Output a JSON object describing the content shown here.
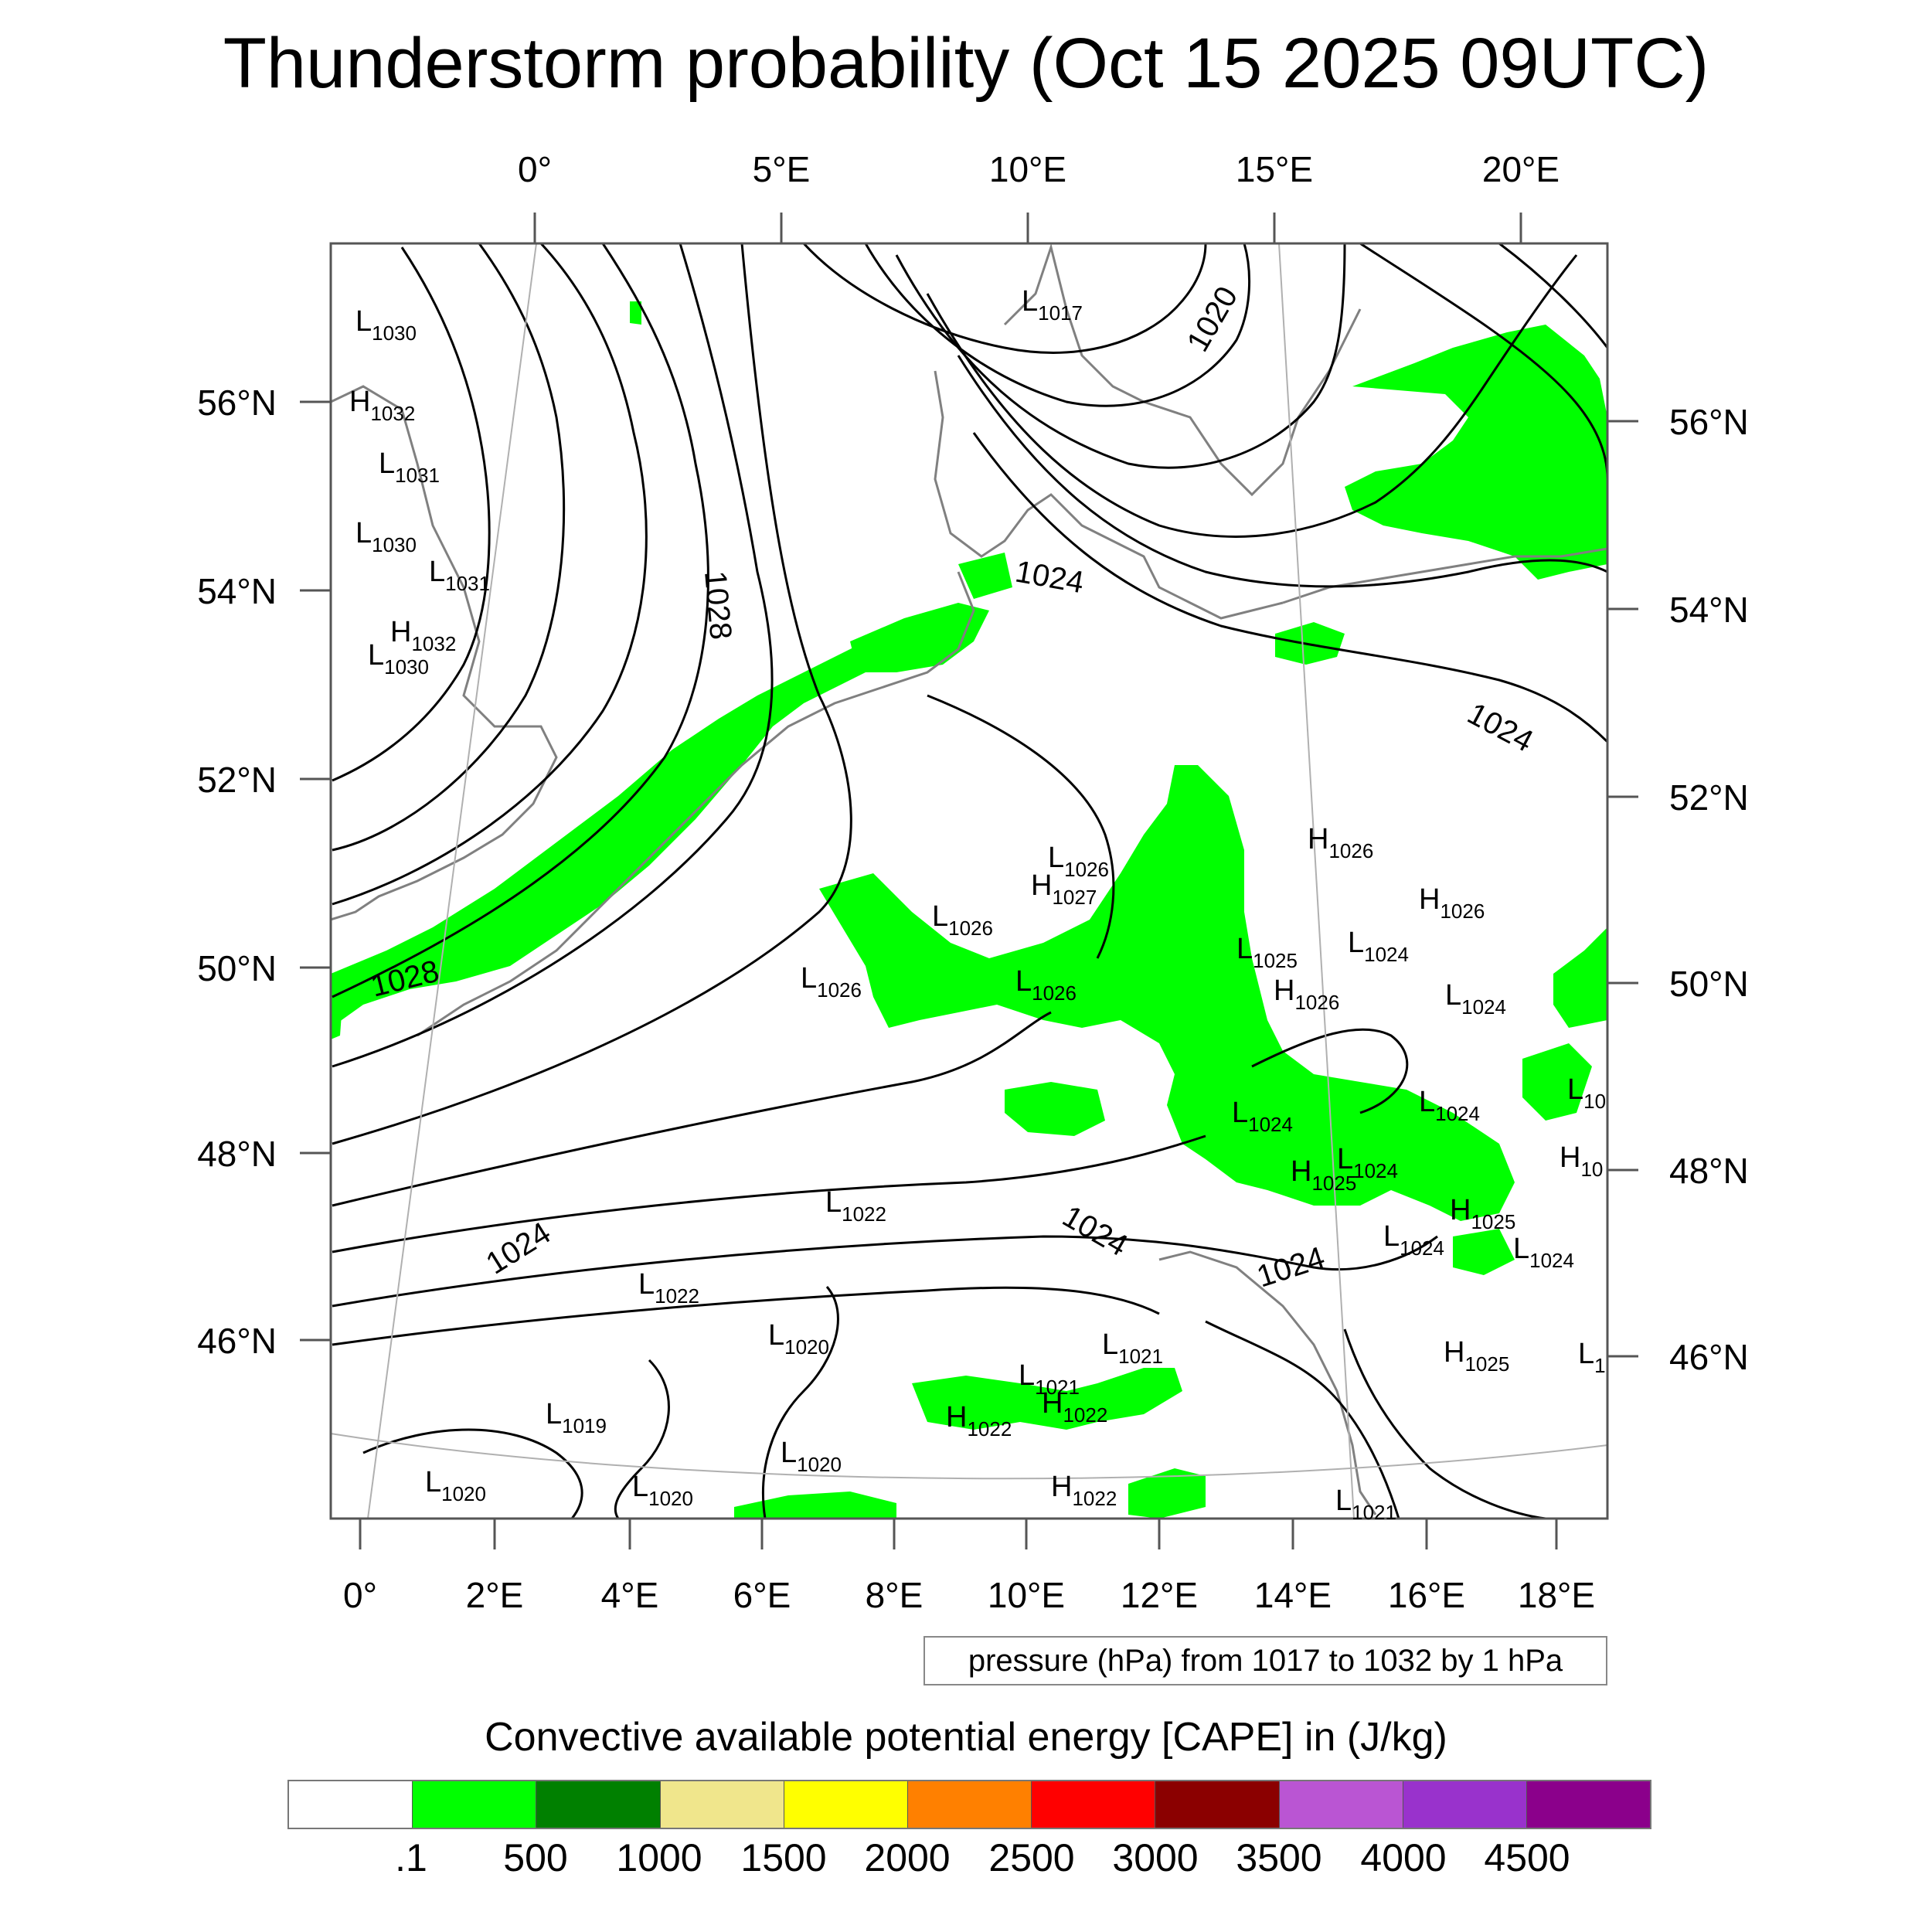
{
  "title": "Thunderstorm probability (Oct 15 2025 09UTC)",
  "top_axis": [
    "0°",
    "5°E",
    "10°E",
    "15°E",
    "20°E"
  ],
  "bottom_axis": [
    "0°",
    "2°E",
    "4°E",
    "6°E",
    "8°E",
    "10°E",
    "12°E",
    "14°E",
    "16°E",
    "18°E"
  ],
  "left_axis": [
    "56°N",
    "54°N",
    "52°N",
    "50°N",
    "48°N",
    "46°N"
  ],
  "right_axis": [
    "56°N",
    "54°N",
    "52°N",
    "50°N",
    "48°N",
    "46°N"
  ],
  "pressure_centers": [
    {
      "t": "L",
      "v": "1030"
    },
    {
      "t": "H",
      "v": "1032"
    },
    {
      "t": "L",
      "v": "1031"
    },
    {
      "t": "L",
      "v": "1030"
    },
    {
      "t": "L",
      "v": "1031"
    },
    {
      "t": "H",
      "v": "1032"
    },
    {
      "t": "L",
      "v": "1030"
    },
    {
      "t": "L",
      "v": "1017"
    },
    {
      "t": "L",
      "v": "1026"
    },
    {
      "t": "H",
      "v": "1027"
    },
    {
      "t": "L",
      "v": "1026"
    },
    {
      "t": "L",
      "v": "1026"
    },
    {
      "t": "L",
      "v": "1026"
    },
    {
      "t": "H",
      "v": "1026"
    },
    {
      "t": "H",
      "v": "1026"
    },
    {
      "t": "L",
      "v": "1025"
    },
    {
      "t": "L",
      "v": "1024"
    },
    {
      "t": "H",
      "v": "1026"
    },
    {
      "t": "L",
      "v": "1024"
    },
    {
      "t": "L",
      "v": "1024"
    },
    {
      "t": "L",
      "v": "1024"
    },
    {
      "t": "L",
      "v": "10"
    },
    {
      "t": "H",
      "v": "10"
    },
    {
      "t": "L",
      "v": "1024"
    },
    {
      "t": "H",
      "v": "1025"
    },
    {
      "t": "H",
      "v": "1025"
    },
    {
      "t": "L",
      "v": "1024"
    },
    {
      "t": "L",
      "v": "1024"
    },
    {
      "t": "L",
      "v": "1022"
    },
    {
      "t": "L",
      "v": "1022"
    },
    {
      "t": "L",
      "v": "1020"
    },
    {
      "t": "H",
      "v": "1025"
    },
    {
      "t": "L",
      "v": "1021"
    },
    {
      "t": "L",
      "v": "1021"
    },
    {
      "t": "H",
      "v": "1022"
    },
    {
      "t": "H",
      "v": "1022"
    },
    {
      "t": "L",
      "v": "1019"
    },
    {
      "t": "L",
      "v": "1020"
    },
    {
      "t": "L",
      "v": "1020"
    },
    {
      "t": "L",
      "v": "1020"
    },
    {
      "t": "H",
      "v": "1022"
    },
    {
      "t": "L",
      "v": "1021"
    },
    {
      "t": "L",
      "v": "1"
    }
  ],
  "isobar_labels": [
    "1020",
    "1024",
    "1028",
    "1024",
    "1028",
    "1024",
    "1024",
    "1024"
  ],
  "info_box": "pressure (hPa) from 1017 to 1032 by 1 hPa",
  "colorbar": {
    "title": "Convective available potential energy [CAPE] in (J/kg)",
    "labels": [
      ".1",
      "500",
      "1000",
      "1500",
      "2000",
      "2500",
      "3000",
      "3500",
      "4000",
      "4500"
    ],
    "colors": [
      "#ffffff",
      "#00ff00",
      "#008000",
      "#f0e68c",
      "#ffff00",
      "#ff8000",
      "#ff0000",
      "#8b0000",
      "#ba55d3",
      "#9932cc",
      "#8b008b"
    ]
  },
  "colors": {
    "cape_fill": "#00ff00",
    "isobar": "#000000",
    "coastline": "#808080"
  }
}
